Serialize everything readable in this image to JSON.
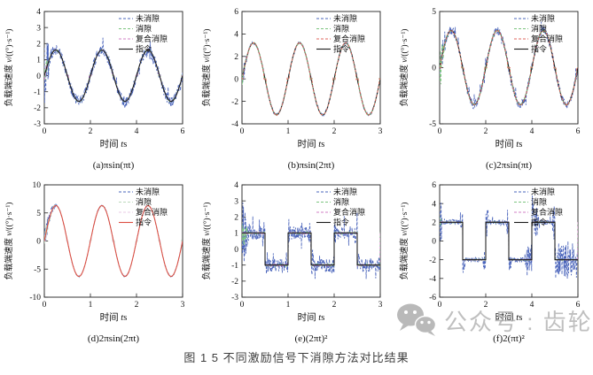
{
  "figure": {
    "caption": "图 1 5 不同激励信号下消隙方法对比结果"
  },
  "watermark": {
    "icon": "wechat-icon",
    "text": "公众号 : 齿轮传动",
    "color": "#b0b0b0"
  },
  "axes": {
    "xlabel": "时间 t/s",
    "ylabel": "负载端速度 v/((°)·s⁻¹)"
  },
  "legend": {
    "entries": [
      {
        "label": "未消隙",
        "key": "uncompensated",
        "style": "dashed"
      },
      {
        "label": "消隙",
        "key": "compensated",
        "style": "dashed"
      },
      {
        "label": "复合消隙",
        "key": "composite",
        "style": "dashed"
      },
      {
        "label": "指令",
        "key": "command",
        "style": "solid"
      }
    ]
  },
  "chart_data": [
    {
      "id": "a",
      "type": "line",
      "label": "(a)πsin(πt)",
      "signal": "πsin(πt)",
      "xlim": [
        0,
        6
      ],
      "xticks": [
        0,
        2,
        4,
        6
      ],
      "ylim": [
        -3,
        4
      ],
      "yticks": [
        -3,
        -2,
        -1,
        0,
        1,
        2,
        3,
        4
      ],
      "command": {
        "waveform": "sine",
        "amplitude": 1.6,
        "period": 2
      },
      "series": [
        {
          "name": "未消隙",
          "key": "uncompensated",
          "color": "#4a64bb",
          "dash": true,
          "noise": 0.32,
          "transient": [
            0.32,
            2.0
          ]
        },
        {
          "name": "消隙",
          "key": "compensated",
          "color": "#7cc47f",
          "dash": true,
          "jitter": 0.05,
          "deadzone": 0.22,
          "transient": [
            0.25,
            0.8
          ]
        },
        {
          "name": "复合消隙",
          "key": "composite",
          "color": "#d27fc6",
          "dash": true,
          "jitter": 0.03,
          "deadzone": 0.22,
          "transient": [
            0.2,
            0.5
          ]
        },
        {
          "name": "指令",
          "key": "command",
          "color": "#1a1a1a",
          "dash": false
        }
      ]
    },
    {
      "id": "b",
      "type": "line",
      "label": "(b)πsin(2πt)",
      "signal": "πsin(2πt)",
      "xlim": [
        0,
        3
      ],
      "xticks": [
        0,
        1,
        2,
        3
      ],
      "ylim": [
        -4,
        6
      ],
      "yticks": [
        -4,
        -2,
        0,
        2,
        4,
        6
      ],
      "command": {
        "waveform": "sine",
        "amplitude": 3.2,
        "period": 1
      },
      "series": [
        {
          "name": "未消隙",
          "key": "uncompensated",
          "color": "#4a64bb",
          "dash": true,
          "noise": 0.13,
          "transient": [
            0.15,
            1.0
          ]
        },
        {
          "name": "指令",
          "key": "command",
          "color": "#1a1a1a",
          "dash": false
        },
        {
          "name": "消隙",
          "key": "compensated",
          "color": "#7cc47f",
          "dash": true,
          "jitter": 0.06,
          "deadzone": 0.5,
          "transient": [
            0.12,
            0.6
          ]
        },
        {
          "name": "复合消隙",
          "key": "composite",
          "color": "#df655c",
          "dash": true,
          "jitter": 0.04,
          "deadzone": 0.5
        }
      ]
    },
    {
      "id": "c",
      "type": "line",
      "label": "(c)2πsin(πt)",
      "signal": "2πsin(πt)",
      "xlim": [
        0,
        6
      ],
      "xticks": [
        0,
        2,
        4,
        6
      ],
      "ylim": [
        -5,
        5
      ],
      "yticks": [
        -5,
        0,
        5
      ],
      "command": {
        "waveform": "sine",
        "amplitude": 3.3,
        "period": 2
      },
      "series": [
        {
          "name": "未消隙",
          "key": "uncompensated",
          "color": "#4a64bb",
          "dash": true,
          "noise": 0.38,
          "transient": [
            0.28,
            1.6
          ]
        },
        {
          "name": "指令",
          "key": "command",
          "color": "#1a1a1a",
          "dash": false
        },
        {
          "name": "消隙",
          "key": "compensated",
          "color": "#7cc47f",
          "dash": true,
          "jitter": 0.08,
          "deadzone": 0.55,
          "transient": [
            0.25,
            2.2
          ]
        },
        {
          "name": "复合消隙",
          "key": "composite",
          "color": "#df655c",
          "dash": true,
          "jitter": 0.05,
          "deadzone": 0.55
        }
      ]
    },
    {
      "id": "d",
      "type": "line",
      "label": "(d)2πsin(2πt)",
      "signal": "2πsin(2πt)",
      "xlim": [
        0,
        3
      ],
      "xticks": [
        0,
        1,
        2,
        3
      ],
      "ylim": [
        -10,
        10
      ],
      "yticks": [
        -10,
        -5,
        0,
        5,
        10
      ],
      "command": {
        "waveform": "sine",
        "amplitude": 6.3,
        "period": 1
      },
      "series": [
        {
          "name": "未消隙",
          "key": "uncompensated",
          "color": "#4a64bb",
          "dash": true,
          "noise": 0.12,
          "transient": [
            0.3,
            1.7
          ]
        },
        {
          "name": "消隙",
          "key": "compensated",
          "color": "#bcd9bc",
          "dash": true,
          "jitter": 0.08,
          "deadzone": 0.8,
          "transient": [
            0.25,
            1.5
          ]
        },
        {
          "name": "复合消隙",
          "key": "composite",
          "color": "#e9cbe5",
          "dash": true,
          "jitter": 0.05,
          "deadzone": 0.8
        },
        {
          "name": "指令",
          "key": "command",
          "color": "#dc4e41",
          "dash": false
        }
      ]
    },
    {
      "id": "e",
      "type": "line",
      "label": "(e)(2πt)²",
      "signal": "(2πt)²",
      "xlim": [
        0,
        3
      ],
      "xticks": [
        0,
        1,
        2,
        3
      ],
      "ylim": [
        -3,
        4
      ],
      "yticks": [
        -3,
        -2,
        -1,
        0,
        1,
        2,
        3,
        4
      ],
      "command": {
        "waveform": "square",
        "amplitude": 1,
        "period": 1
      },
      "series": [
        {
          "name": "未消隙",
          "key": "uncompensated",
          "color": "#4a64bb",
          "dash": true,
          "noise": 0.42,
          "edge": 0.6,
          "transient": [
            0.2,
            1.9
          ]
        },
        {
          "name": "消隙",
          "key": "compensated",
          "color": "#7cc47f",
          "dash": true,
          "jitter": 0.07,
          "transient": [
            0.15,
            1.1
          ]
        },
        {
          "name": "复合消隙",
          "key": "composite",
          "color": "#d27fc6",
          "dash": true,
          "jitter": 0.05
        },
        {
          "name": "指令",
          "key": "command",
          "color": "#1a1a1a",
          "dash": false
        }
      ]
    },
    {
      "id": "f",
      "type": "line",
      "label": "(f)2(πt)²",
      "signal": "2(πt)²",
      "xlim": [
        0,
        6
      ],
      "xticks": [
        0,
        2,
        4,
        6
      ],
      "ylim": [
        -6,
        6
      ],
      "yticks": [
        -6,
        -4,
        -2,
        0,
        2,
        4,
        6
      ],
      "command": {
        "waveform": "square",
        "amplitude": 2,
        "period": 2
      },
      "series": [
        {
          "name": "未消隙",
          "key": "uncompensated",
          "color": "#4a64bb",
          "dash": true,
          "noise": 0.28,
          "edge": 1.3,
          "transient": [
            0.12,
            3.2
          ],
          "bursts": [
            [
              3.7,
              4.3,
              1.7
            ],
            [
              4.95,
              6.0,
              1.8
            ]
          ]
        },
        {
          "name": "消隙",
          "key": "compensated",
          "color": "#7cc47f",
          "dash": true,
          "jitter": 0.07,
          "transient": [
            0.1,
            1.4
          ]
        },
        {
          "name": "复合消隙",
          "key": "composite",
          "color": "#d27fc6",
          "dash": true,
          "jitter": 0.05
        },
        {
          "name": "指令",
          "key": "command",
          "color": "#1a1a1a",
          "dash": false
        }
      ]
    }
  ]
}
